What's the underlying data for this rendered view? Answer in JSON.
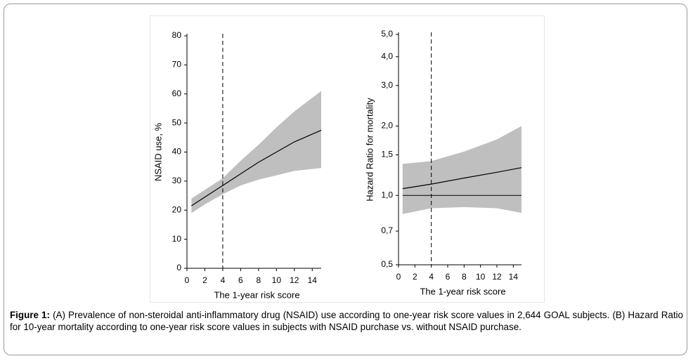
{
  "chart_data": [
    {
      "type": "band-line",
      "y_label": "NSAID use, %",
      "x_label": "The 1-year risk score",
      "xlim": [
        0,
        15
      ],
      "xticks": [
        0,
        2,
        4,
        6,
        8,
        10,
        12,
        14
      ],
      "ylim": [
        0,
        80
      ],
      "yticks": [
        0,
        10,
        20,
        30,
        40,
        50,
        60,
        70,
        80
      ],
      "log": false,
      "vline": 4,
      "line_color": "#000000",
      "band_color": "#bfbfbf",
      "x": [
        0.5,
        2,
        4,
        6,
        8,
        10,
        12,
        15
      ],
      "values": [
        21.5,
        24.5,
        28.5,
        32.5,
        36.5,
        40,
        43.5,
        47.5
      ],
      "lower": [
        19,
        22,
        25.5,
        28.5,
        30.5,
        32,
        33.5,
        34.5
      ],
      "upper": [
        24,
        27,
        31,
        37,
        42.5,
        48.5,
        54,
        61
      ]
    },
    {
      "type": "band-line",
      "y_label": "Hazard Ratio for mortality",
      "x_label": "The 1-year risk score",
      "xlim": [
        0,
        15
      ],
      "xticks": [
        0,
        2,
        4,
        6,
        8,
        10,
        12,
        14
      ],
      "ylim": [
        0.5,
        5
      ],
      "log": true,
      "yticks": [
        {
          "value": 0.5,
          "label": "0,5"
        },
        {
          "value": 0.7,
          "label": "0,7"
        },
        {
          "value": 1,
          "label": "1,0"
        },
        {
          "value": 1.5,
          "label": "1,5"
        },
        {
          "value": 2,
          "label": "2,0"
        },
        {
          "value": 3,
          "label": "3,0"
        },
        {
          "value": 4,
          "label": "4,0"
        },
        {
          "value": 5,
          "label": "5,0"
        }
      ],
      "vline": 4,
      "hline": 1,
      "line_color": "#000000",
      "band_color": "#bfbfbf",
      "x": [
        0.5,
        4,
        8,
        12,
        15
      ],
      "values": [
        1.07,
        1.12,
        1.19,
        1.26,
        1.32
      ],
      "lower": [
        0.83,
        0.88,
        0.89,
        0.88,
        0.84
      ],
      "upper": [
        1.37,
        1.41,
        1.55,
        1.75,
        2.0
      ]
    }
  ],
  "caption": {
    "label": "Figure 1:",
    "text": "(A) Prevalence of non-steroidal anti-inflammatory drug (NSAID) use according to one-year risk score values in 2,644 GOAL subjects. (B) Hazard Ratio for 10-year mortality according to one-year risk score values in subjects with NSAID purchase vs. without NSAID purchase."
  }
}
